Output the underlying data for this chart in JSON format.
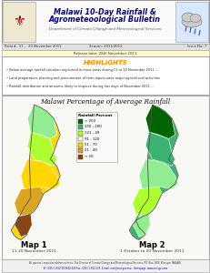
{
  "title_line1": "Malawi 10-Day Rainfall &",
  "title_line2": "Agrometeoological Bulletin",
  "dept_line": "Department of Climate Change and Meteorological Services",
  "period_label": "Period:  11 –  20 November 2011",
  "season_label": "Season: 2011/2012",
  "issue_label": "Issue No: 7",
  "release_date": "Release date: 28th November 2011",
  "highlights_title": "HIGHLIGHTS",
  "highlights": [
    "Below average rainfall situation registered in most areas during 11 to 20 November 2011 ...",
    "Land preparation, planting and procurement of farm inputs were major agricultural activities",
    "Rainfall distribution and amounts likely to improve during last days of November 2011 ..."
  ],
  "map_title": "Malawi Percentage of Average Rainfall",
  "map1_label": "Map 1",
  "map2_label": "Map 2",
  "map1_date": "11-20 November 2011",
  "map2_date": "1 October to 20 November 2011",
  "legend_title": "Rainfall Percent",
  "legend_items": [
    "> 200",
    "150 - 200",
    "121 - 49",
    "91 - 120",
    "51 - 70",
    "21 - 40",
    "< 20"
  ],
  "legend_colors": [
    "#006400",
    "#3CB371",
    "#ADFF2F",
    "#FFFFE0",
    "#FFD700",
    "#DAA520",
    "#8B4513"
  ],
  "bg_color": "#FFFFFF",
  "title_color": "#00008B",
  "dept_color": "#555555",
  "highlights_title_color": "#FF8C00",
  "header_band_color": "#E0E0E0",
  "release_band_color": "#FFFACD",
  "footer_text": "All queries / enquiries address write to: The Director of Climate Change and Meteorological Services, P.O. Box 1808, Blantyre, MALAWI",
  "footer_text2": "Tel: (265) 1 822 010/822 025 Fax: (265) 1 822 215  E-mail: met@met.gov.mw   Homepage: www.met.gov.mw"
}
